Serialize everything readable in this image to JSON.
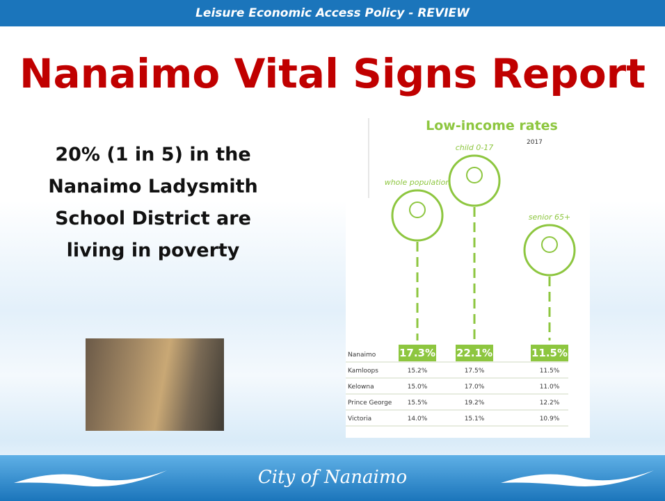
{
  "header": {
    "banner": "Leisure Economic Access Policy - REVIEW",
    "title": "Nanaimo Vital Signs Report"
  },
  "body": {
    "text": "20% (1 in 5) in the Nanaimo Ladysmith School District are living in poverty"
  },
  "infographic": {
    "title": "Low-income rates",
    "year": "2017",
    "groups": [
      "whole population",
      "child 0-17",
      "senior 65+"
    ],
    "table": {
      "rows": [
        [
          "Nanaimo",
          "17.3%",
          "22.1%",
          "11.5%"
        ],
        [
          "Kamloops",
          "15.2%",
          "17.5%",
          "11.5%"
        ],
        [
          "Kelowna",
          "15.0%",
          "17.0%",
          "11.0%"
        ],
        [
          "Prince George",
          "15.5%",
          "19.2%",
          "12.2%"
        ],
        [
          "Victoria",
          "14.0%",
          "15.1%",
          "10.9%"
        ]
      ]
    }
  },
  "footer": {
    "logo": "City of Nanaimo"
  }
}
